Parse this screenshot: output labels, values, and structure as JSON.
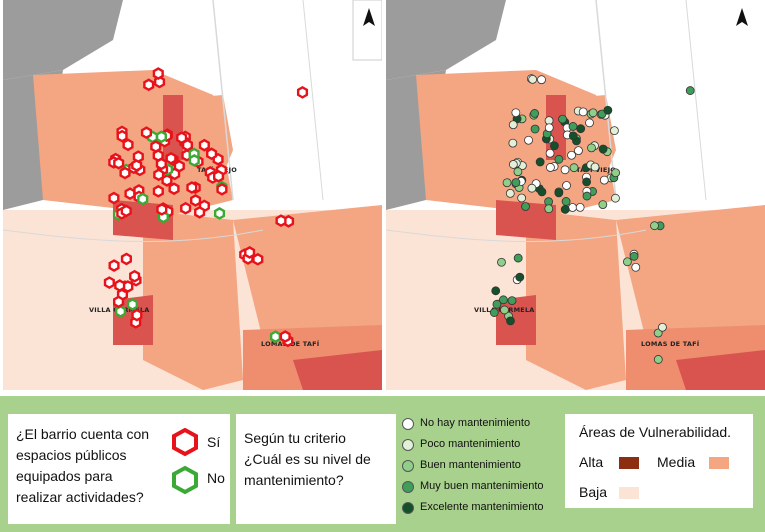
{
  "map_left": {
    "places": [
      "TAFÍ VIEJO",
      "VILLA CARMELA",
      "LOMAS DE TAFÍ"
    ]
  },
  "map_right": {
    "places": [
      "TAFÍ VIEJO",
      "VILLA CARMELA",
      "LOMAS DE TAFÍ"
    ]
  },
  "legend": {
    "q1": [
      "¿El barrio cuenta con",
      "espacios públicos",
      "equipados para",
      "realizar actividades?"
    ],
    "yes_label": "Sí",
    "no_label": "No",
    "q2": [
      "Según tu criterio",
      "¿Cuál es su nivel de",
      "mantenimiento?"
    ],
    "maintenance": [
      {
        "label": "No hay mantenimiento",
        "color": "#ffffff"
      },
      {
        "label": "Poco mantenimiento",
        "color": "#e2f0d9"
      },
      {
        "label": "Buen mantenimiento",
        "color": "#8fcf8a"
      },
      {
        "label": "Muy buen mantenimiento",
        "color": "#3e9e5a"
      },
      {
        "label": "Excelente mantenimiento",
        "color": "#14502a"
      }
    ],
    "vuln_title": "Áreas de Vulnerabilidad.",
    "vuln": [
      {
        "label": "Alta",
        "color": "#8b2e12"
      },
      {
        "label": "Media",
        "color": "#f4a582"
      },
      {
        "label": "Baja",
        "color": "#fbe3d6"
      }
    ]
  },
  "colors": {
    "yes": "#e8121a",
    "no": "#3aa935",
    "gray": "#9c9c9c",
    "road": "#d9d9d9"
  }
}
